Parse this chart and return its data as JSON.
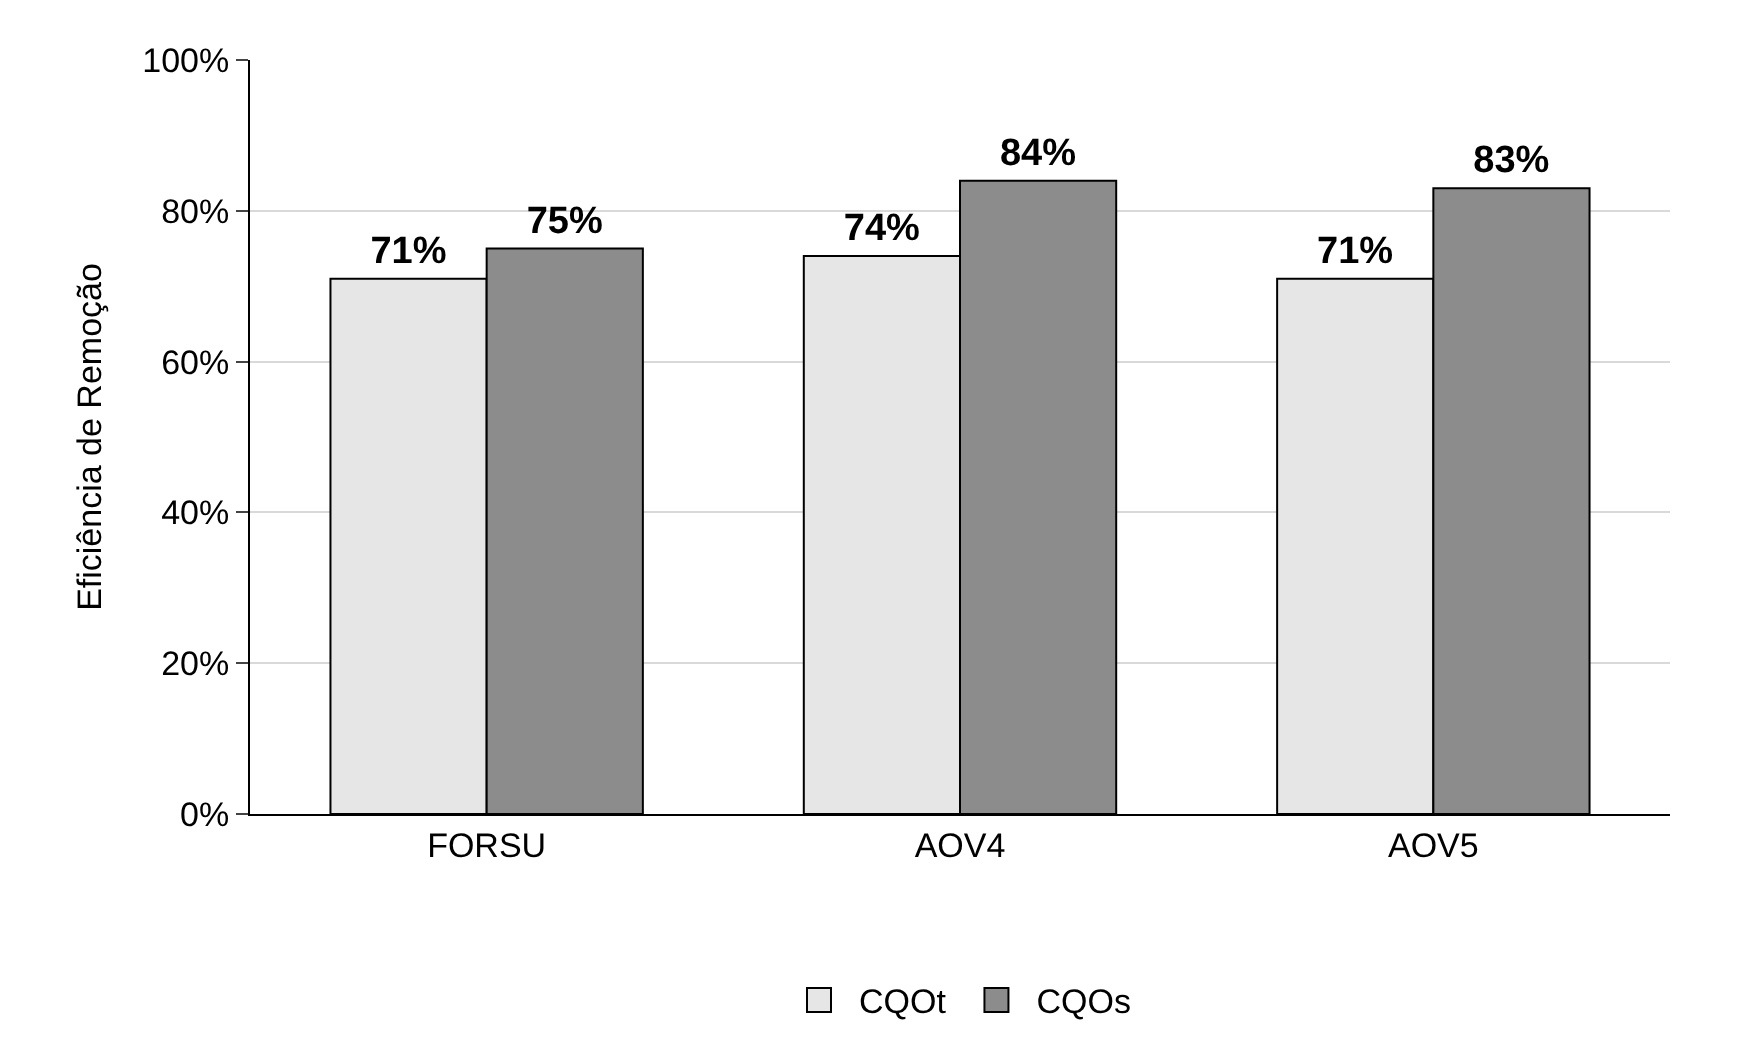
{
  "chart_data": {
    "type": "bar",
    "ylabel": "Eficiência de Remoção",
    "categories": [
      "FORSU",
      "AOV4",
      "AOV5"
    ],
    "series": [
      {
        "name": "CQOt",
        "color": "#e6e6e6",
        "values": [
          71,
          74,
          71
        ],
        "value_labels": [
          "71%",
          "74%",
          "71%"
        ]
      },
      {
        "name": "CQOs",
        "color": "#8c8c8c",
        "values": [
          75,
          84,
          83
        ],
        "value_labels": [
          "75%",
          "84%",
          "83%"
        ]
      }
    ],
    "ylim": [
      0,
      100
    ],
    "yticks": [
      {
        "value": 0,
        "label": "0%"
      },
      {
        "value": 20,
        "label": "20%"
      },
      {
        "value": 40,
        "label": "40%"
      },
      {
        "value": 60,
        "label": "60%"
      },
      {
        "value": 80,
        "label": "80%"
      },
      {
        "value": 100,
        "label": "100%"
      }
    ],
    "grid": "y",
    "legend": "bottom"
  }
}
